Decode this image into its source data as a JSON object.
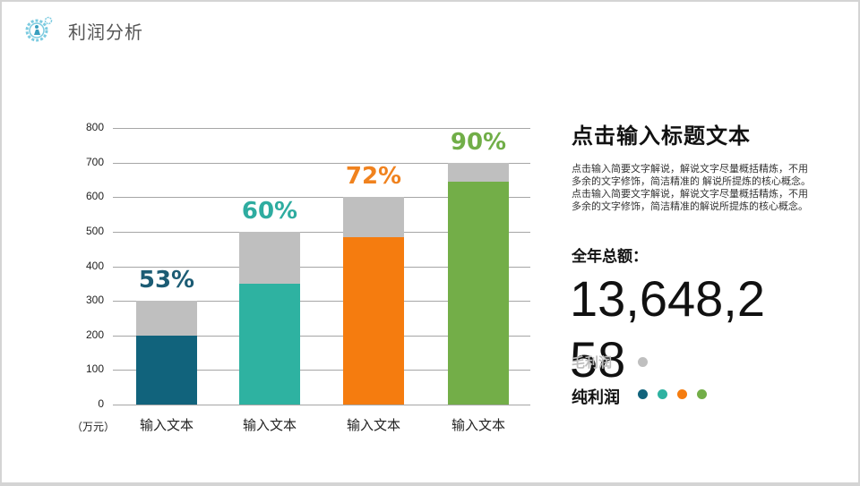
{
  "header": {
    "title": "利润分析",
    "logo_icon": "gear-person-icon"
  },
  "chart_data": {
    "type": "bar",
    "stacked_overlay": true,
    "categories": [
      "输入文本",
      "输入文本",
      "输入文本",
      "输入文本"
    ],
    "series": [
      {
        "name": "毛利润",
        "values": [
          300,
          500,
          600,
          700
        ],
        "color": "#bfbfbf"
      },
      {
        "name": "纯利润",
        "values": [
          200,
          350,
          483,
          645
        ],
        "colors": [
          "#11637c",
          "#2eb2a1",
          "#f57c0f",
          "#73ae48"
        ]
      }
    ],
    "data_labels": [
      "53%",
      "60%",
      "72%",
      "90%"
    ],
    "data_label_colors": [
      "#1c5c74",
      "#2eaca0",
      "#f0821e",
      "#71ae48"
    ],
    "ylabel": "（万元）",
    "yticks": [
      "0",
      "100",
      "200",
      "300",
      "400",
      "500",
      "600",
      "700",
      "800"
    ],
    "ylim": [
      0,
      800
    ],
    "grid": true,
    "title": ""
  },
  "side": {
    "title": "点击输入标题文本",
    "description": "点击输入简要文字解说，解说文字尽量概括精炼，不用多余的文字修饰，简洁精准的 解说所提炼的核心概念。点击输入简要文字解说，解说文字尽量概括精炼，不用多余的文字修饰，简洁精准的解说所提炼的核心概念。",
    "total_label": "全年总额：",
    "total_value": "13,648,258",
    "legend": [
      {
        "label": "毛利润",
        "colors": [
          "#bfbfbf"
        ]
      },
      {
        "label": "纯利润",
        "colors": [
          "#11637c",
          "#2eb2a1",
          "#f57c0f",
          "#73ae48"
        ]
      }
    ]
  }
}
